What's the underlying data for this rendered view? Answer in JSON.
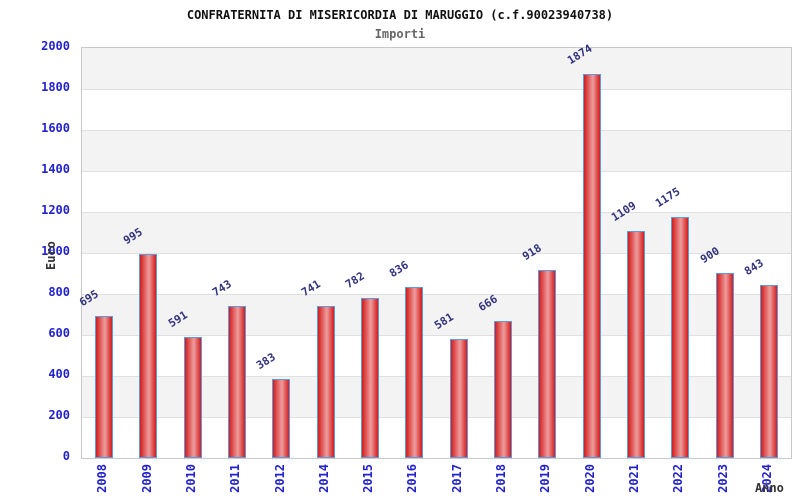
{
  "chart_data": {
    "type": "bar",
    "title": "CONFRATERNITA DI MISERICORDIA DI MARUGGIO (c.f.90023940738)",
    "subtitle": "Importi",
    "xlabel": "Anno",
    "ylabel": "Euro",
    "categories": [
      "2008",
      "2009",
      "2010",
      "2011",
      "2012",
      "2014",
      "2015",
      "2016",
      "2017",
      "2018",
      "2019",
      "2020",
      "2021",
      "2022",
      "2023",
      "2024"
    ],
    "values": [
      695,
      995,
      591,
      743,
      383,
      741,
      782,
      836,
      581,
      666,
      918,
      1874,
      1109,
      1175,
      900,
      843
    ],
    "ylim": [
      0,
      2000
    ],
    "ytick_step": 200,
    "grid": true,
    "legend": false,
    "band_pattern": "alternating horizontal bands, gray on 200-400, 600-800, 1000-1200, 1400-1600, 1800-2000",
    "colors": {
      "axis_text": "#2222cc",
      "value_label": "#32327d",
      "bar_border": "#5b9ce0",
      "bar_fill_edge": "#d31c1c",
      "bar_fill_mid": "#ee9c9c",
      "band_fill": "#f3f3f3",
      "gridline": "#e0e0e0",
      "plot_border": "#c9c9c9",
      "title_color": "#111111",
      "subtitle_color": "#666666",
      "axis_title_color": "#333333"
    }
  }
}
